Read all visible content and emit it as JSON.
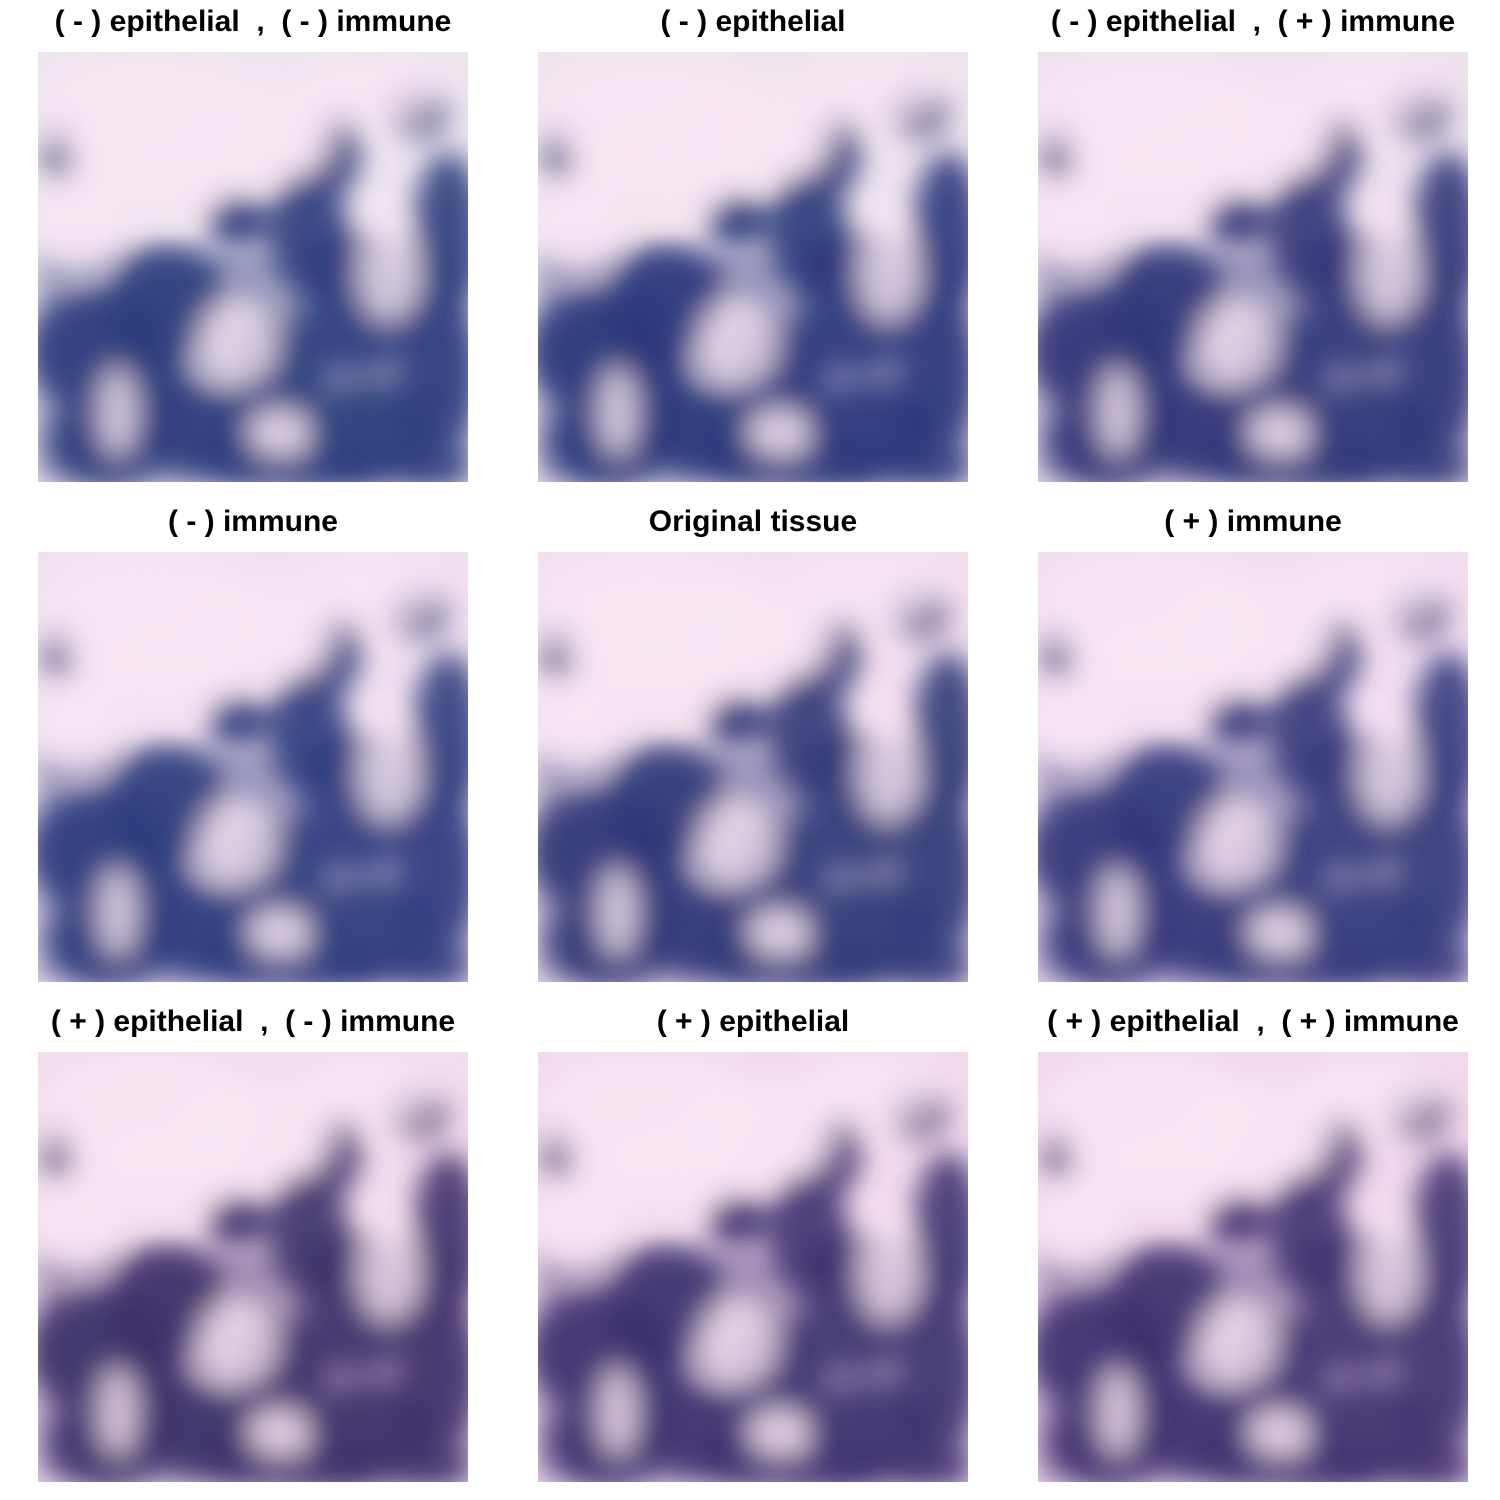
{
  "panels": [
    {
      "title": "( - ) epithelial  ,  ( - ) immune",
      "tint": "#2b3a7c",
      "base": "#eee5ef"
    },
    {
      "title": "( - ) epithelial",
      "tint": "#2a367a",
      "base": "#efe4ee"
    },
    {
      "title": "( - ) epithelial  ,  ( + ) immune",
      "tint": "#2f3577",
      "base": "#efe2ee"
    },
    {
      "title": "( - ) immune",
      "tint": "#2d3a7d",
      "base": "#f1e1f0"
    },
    {
      "title": "Original tissue",
      "tint": "#2f3777",
      "base": "#f3e0ef"
    },
    {
      "title": "( + ) immune",
      "tint": "#33377a",
      "base": "#f2def0"
    },
    {
      "title": "( + ) epithelial  ,  ( - ) immune",
      "tint": "#3b2f6a",
      "base": "#f3dcec"
    },
    {
      "title": "( + ) epithelial",
      "tint": "#3c3070",
      "base": "#f3dbed"
    },
    {
      "title": "( + ) epithelial  ,  ( + ) immune",
      "tint": "#3e3070",
      "base": "#f2d9ec"
    }
  ]
}
